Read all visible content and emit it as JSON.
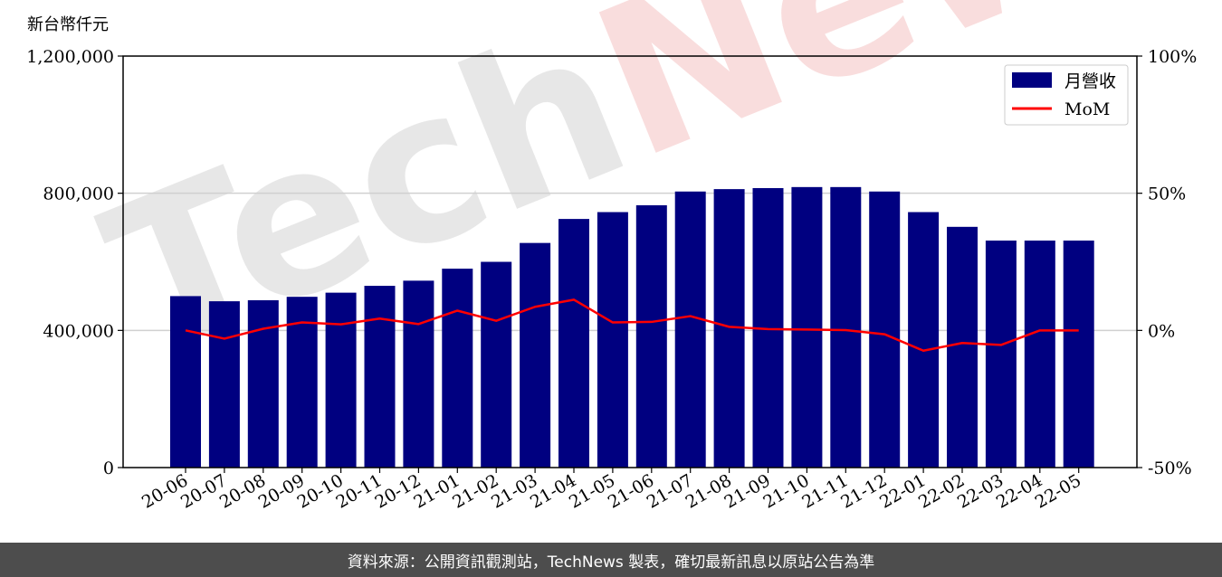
{
  "chart_data": {
    "type": "bar",
    "y_unit_label": "新台幣仟元",
    "categories": [
      "20-06",
      "20-07",
      "20-08",
      "20-09",
      "20-10",
      "20-11",
      "20-12",
      "21-01",
      "21-02",
      "21-03",
      "21-04",
      "21-05",
      "21-06",
      "21-07",
      "21-08",
      "21-09",
      "21-10",
      "21-11",
      "21-12",
      "22-01",
      "22-02",
      "22-03",
      "22-04",
      "22-05"
    ],
    "series": [
      {
        "name": "月營收",
        "type": "bar",
        "axis": "left",
        "color": "#000080",
        "values": [
          500000,
          485000,
          488000,
          498000,
          510000,
          530000,
          545000,
          580000,
          600000,
          655000,
          725000,
          745000,
          765000,
          805000,
          812000,
          815000,
          818000,
          818000,
          805000,
          745000,
          702000,
          662000,
          662000,
          662000
        ]
      },
      {
        "name": "MoM",
        "type": "line",
        "axis": "right",
        "color": "#ff0000",
        "values": [
          0.0,
          -3.0,
          0.6,
          2.9,
          2.2,
          4.3,
          2.3,
          7.2,
          3.5,
          8.6,
          11.2,
          2.9,
          3.1,
          5.2,
          1.3,
          0.5,
          0.3,
          0.1,
          -1.4,
          -7.4,
          -4.6,
          -5.3,
          0.0,
          0.0
        ]
      }
    ],
    "y_left": {
      "ylim": [
        0,
        1200000
      ],
      "ticks": [
        0,
        400000,
        800000,
        1200000
      ],
      "tick_labels": [
        "0",
        "400,000",
        "800,000",
        "1,200,000"
      ]
    },
    "y_right": {
      "ylim": [
        -50,
        100
      ],
      "ticks": [
        -50,
        0,
        50,
        100
      ],
      "tick_labels": [
        "-50%",
        "0%",
        "50%",
        "100%"
      ]
    },
    "grid": "horizontal",
    "legend_position": "top-right"
  },
  "watermark": {
    "text": "TechNews",
    "colors": [
      "#cccccc",
      "#f2b6b6"
    ]
  },
  "footer": {
    "source_text": "資料來源：公開資訊觀測站，TechNews 製表，確切最新訊息以原站公告為準"
  }
}
